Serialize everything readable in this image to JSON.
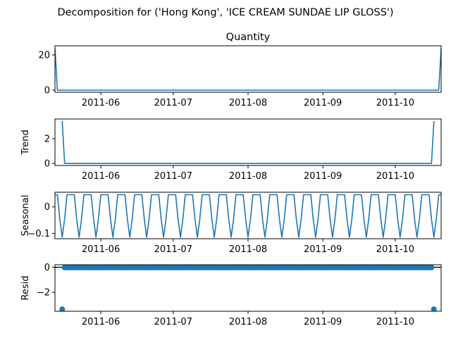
{
  "suptitle": "Decomposition for ('Hong Kong', 'ICE CREAM SUNDAE LIP GLOSS')",
  "chart_data": [
    {
      "type": "line",
      "title": "Quantity",
      "xlabel": "",
      "ylabel": "",
      "x_range": [
        "2011-05-13",
        "2011-10-20"
      ],
      "ylim": [
        -1.2,
        25.2
      ],
      "yticks": [
        0,
        20
      ],
      "xticks": [
        "2011-06",
        "2011-07",
        "2011-08",
        "2011-09",
        "2011-10"
      ],
      "grid": false,
      "color": "#1f77b4",
      "series": [
        {
          "values": [
            {
              "x": "2011-05-13",
              "y": 24
            },
            {
              "x": "2011-05-14",
              "y": 0
            },
            {
              "x": "2011-10-19",
              "y": 0
            },
            {
              "x": "2011-10-20",
              "y": 24
            }
          ]
        }
      ]
    },
    {
      "type": "line",
      "title": "",
      "xlabel": "",
      "ylabel": "Trend",
      "x_range": [
        "2011-05-13",
        "2011-10-20"
      ],
      "ylim": [
        -0.17,
        3.6
      ],
      "yticks": [
        0,
        2
      ],
      "xticks": [
        "2011-06",
        "2011-07",
        "2011-08",
        "2011-09",
        "2011-10"
      ],
      "grid": false,
      "color": "#1f77b4",
      "series": [
        {
          "values": [
            {
              "x": "2011-05-16",
              "y": 3.43
            },
            {
              "x": "2011-05-17",
              "y": 0
            },
            {
              "x": "2011-10-16",
              "y": 0
            },
            {
              "x": "2011-10-17",
              "y": 3.43
            }
          ]
        }
      ]
    },
    {
      "type": "line",
      "title": "",
      "xlabel": "",
      "ylabel": "Seasonal",
      "x_range": [
        "2011-05-13",
        "2011-10-20"
      ],
      "ylim": [
        -0.12,
        0.055
      ],
      "yticks": [
        -0.1,
        0.0
      ],
      "xticks": [
        "2011-06",
        "2011-07",
        "2011-08",
        "2011-09",
        "2011-10"
      ],
      "grid": false,
      "color": "#1f77b4",
      "weekly_pattern": [
        0.0457,
        0.0457,
        -0.0457,
        -0.1143,
        -0.0457,
        0.0457,
        0.0457
      ],
      "pattern_start": "2011-05-13"
    },
    {
      "type": "scatter",
      "title": "",
      "xlabel": "",
      "ylabel": "Resid",
      "x_range": [
        "2011-05-13",
        "2011-10-20"
      ],
      "ylim": [
        -3.5,
        0.2
      ],
      "yticks": [
        -2,
        0
      ],
      "xticks": [
        "2011-06",
        "2011-07",
        "2011-08",
        "2011-09",
        "2011-10"
      ],
      "grid": false,
      "zero_line": true,
      "color": "#1f77b4",
      "outliers": [
        {
          "x": "2011-05-16",
          "y": -3.34
        },
        {
          "x": "2011-10-17",
          "y": -3.34
        }
      ],
      "baseline": {
        "from": "2011-05-17",
        "to": "2011-10-16",
        "y": -0.02
      }
    }
  ]
}
